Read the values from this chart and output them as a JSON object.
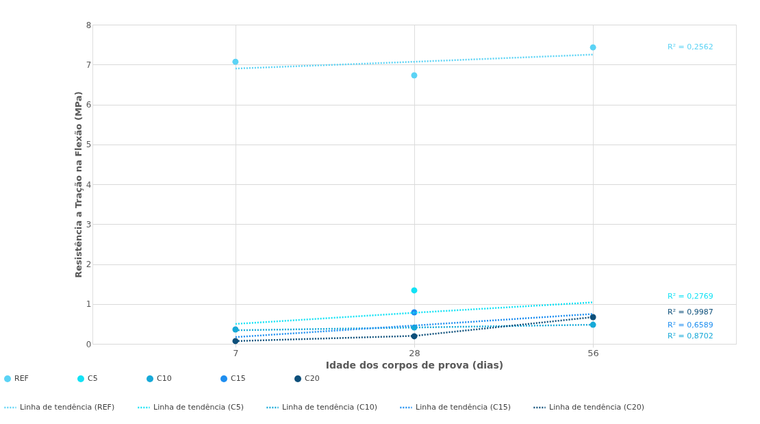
{
  "chart_data": {
    "type": "scatter",
    "xlabel": "Idade dos corpos de prova (dias)",
    "ylabel": "Resistência a Tração na Flexão (MPa)",
    "categories": [
      "7",
      "28",
      "56"
    ],
    "ylim": [
      0,
      8
    ],
    "yticks": [
      0,
      1,
      2,
      3,
      4,
      5,
      6,
      7,
      8
    ],
    "grid": true,
    "legend": "bottom",
    "marker": "circle",
    "series": [
      {
        "name": "REF",
        "color": "#5bd3f5",
        "values": [
          7.07,
          6.73,
          7.43
        ]
      },
      {
        "name": "C5",
        "color": "#12e2f5",
        "values": [
          null,
          1.34,
          null
        ]
      },
      {
        "name": "C10",
        "color": "#17a9d8",
        "values": [
          0.36,
          0.41,
          0.48
        ]
      },
      {
        "name": "C15",
        "color": "#1e8ef0",
        "values": [
          null,
          0.79,
          null
        ]
      },
      {
        "name": "C20",
        "color": "#0d4f7a",
        "values": [
          0.07,
          0.19,
          0.67
        ]
      },
      {
        "name": "Linha de tendência (REF)",
        "type": "line",
        "marker": "none",
        "line_style": "dotted",
        "color": "#5bd3f5",
        "values": [
          6.9,
          7.07,
          7.25
        ]
      },
      {
        "name": "Linha de tendência (C5)",
        "type": "line",
        "marker": "none",
        "line_style": "dotted",
        "color": "#12e2f5",
        "values": [
          0.5,
          0.78,
          1.04
        ]
      },
      {
        "name": "Linha de tendência (C10)",
        "type": "line",
        "marker": "none",
        "line_style": "dotted",
        "color": "#17a9d8",
        "values": [
          0.34,
          0.41,
          0.48
        ]
      },
      {
        "name": "Linha de tendência (C15)",
        "type": "line",
        "marker": "none",
        "line_style": "dotted",
        "color": "#1e8ef0",
        "values": [
          0.17,
          0.46,
          0.75
        ]
      },
      {
        "name": "Linha de tendência (C20)",
        "type": "line",
        "marker": "none",
        "line_style": "dotted",
        "color": "#0d4f7a",
        "values": [
          0.07,
          0.2,
          0.67
        ]
      }
    ],
    "annotations": [
      "R² = 0,2562",
      "R² = 0,2769",
      "R² = 0,9987",
      "R² = 0,6589",
      "R² = 0,8702"
    ]
  }
}
